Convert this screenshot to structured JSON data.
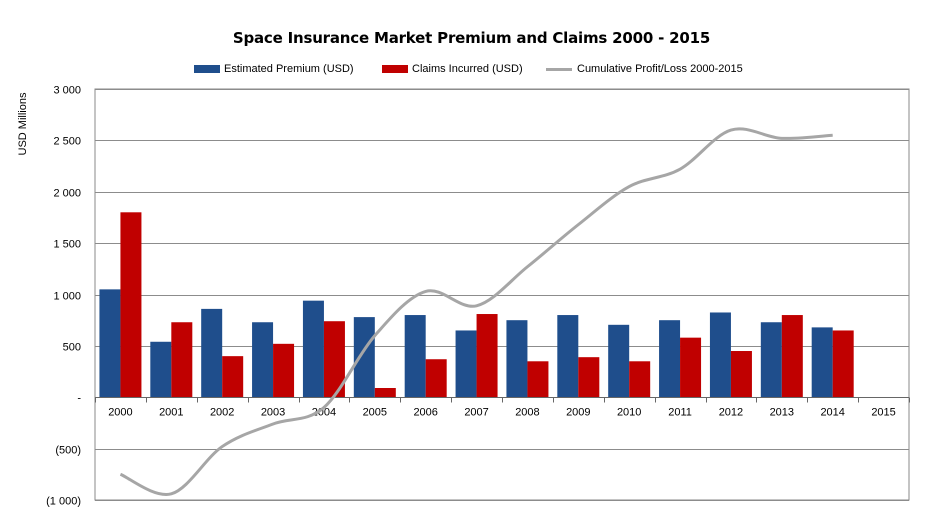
{
  "chart_data": {
    "type": "bar",
    "title": "Space Insurance Market Premium and Claims 2000 - 2015",
    "ylabel": "USD Millions",
    "xlabel": "",
    "categories": [
      "2000",
      "2001",
      "2002",
      "2003",
      "2004",
      "2005",
      "2006",
      "2007",
      "2008",
      "2009",
      "2010",
      "2011",
      "2012",
      "2013",
      "2014",
      "2015"
    ],
    "ylim": [
      -1000,
      3000
    ],
    "yticks": [
      3000,
      2500,
      2000,
      1500,
      1000,
      500,
      0,
      -500,
      -1000
    ],
    "ytick_labels": [
      "3 000",
      "2 500",
      "2 000",
      "1 500",
      "1 000",
      "500",
      "-",
      "(500)",
      "(1 000)"
    ],
    "grid": true,
    "legend_position": "top",
    "series": [
      {
        "name": "Estimated Premium (USD)",
        "type": "bar",
        "color": "#1f4e8c",
        "values": [
          1050,
          540,
          860,
          730,
          940,
          780,
          800,
          650,
          750,
          800,
          705,
          750,
          825,
          730,
          680,
          null
        ]
      },
      {
        "name": "Claims Incurred (USD)",
        "type": "bar",
        "color": "#c00000",
        "values": [
          1800,
          730,
          400,
          520,
          740,
          90,
          370,
          810,
          350,
          390,
          350,
          580,
          450,
          800,
          650,
          null
        ]
      },
      {
        "name": "Cumulative Profit/Loss 2000-2015",
        "type": "line",
        "color": "#a6a6a6",
        "values": [
          -750,
          -940,
          -480,
          -260,
          -100,
          600,
          1030,
          890,
          1270,
          1680,
          2050,
          2220,
          2600,
          2520,
          2550,
          null
        ]
      }
    ]
  }
}
